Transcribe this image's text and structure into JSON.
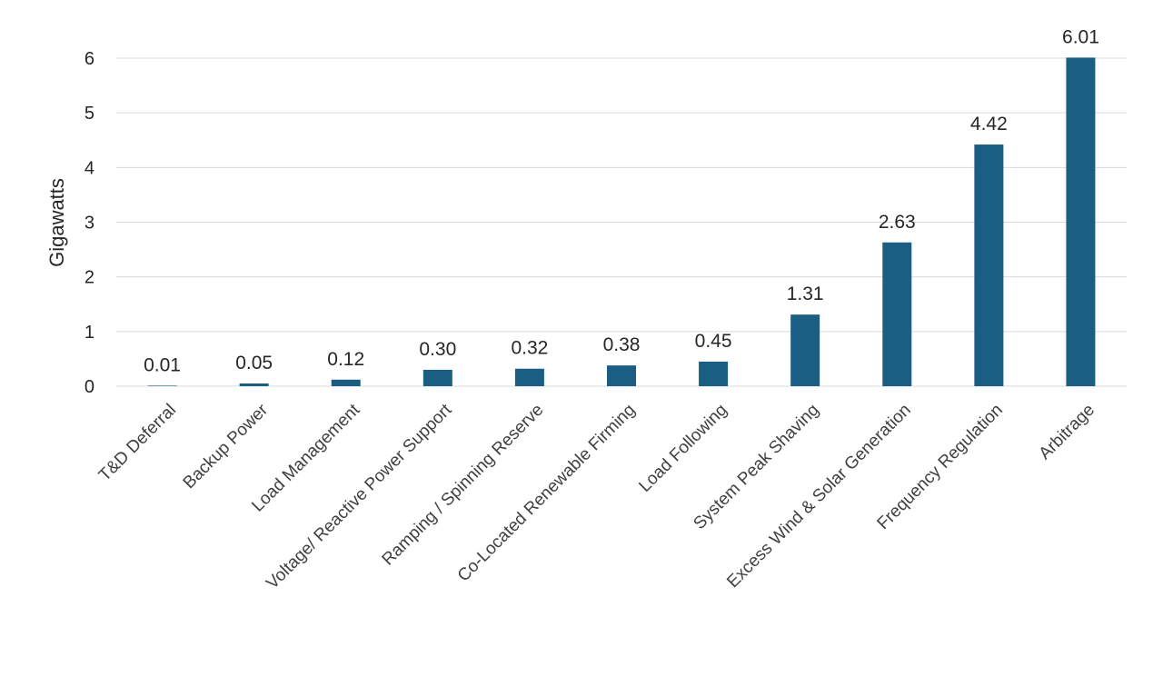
{
  "chart_data": {
    "type": "bar",
    "title": "",
    "xlabel": "",
    "ylabel": "Gigawatts",
    "ylim": [
      0,
      6
    ],
    "yticks": [
      0,
      1,
      2,
      3,
      4,
      5,
      6
    ],
    "grid": true,
    "legend": "none",
    "bar_color": "#1a5e83",
    "categories": [
      "T&D Deferral",
      "Backup Power",
      "Load Management",
      "Voltage/ Reactive Power Support",
      "Ramping / Spinning Reserve",
      "Co-Located Renewable Firming",
      "Load Following",
      "System Peak Shaving",
      "Excess Wind & Solar Generation",
      "Frequency Regulation",
      "Arbitrage"
    ],
    "values": [
      0.01,
      0.05,
      0.12,
      0.3,
      0.32,
      0.38,
      0.45,
      1.31,
      2.63,
      4.42,
      6.01
    ],
    "data_labels": [
      "0.01",
      "0.05",
      "0.12",
      "0.30",
      "0.32",
      "0.38",
      "0.45",
      "1.31",
      "2.63",
      "4.42",
      "6.01"
    ]
  }
}
